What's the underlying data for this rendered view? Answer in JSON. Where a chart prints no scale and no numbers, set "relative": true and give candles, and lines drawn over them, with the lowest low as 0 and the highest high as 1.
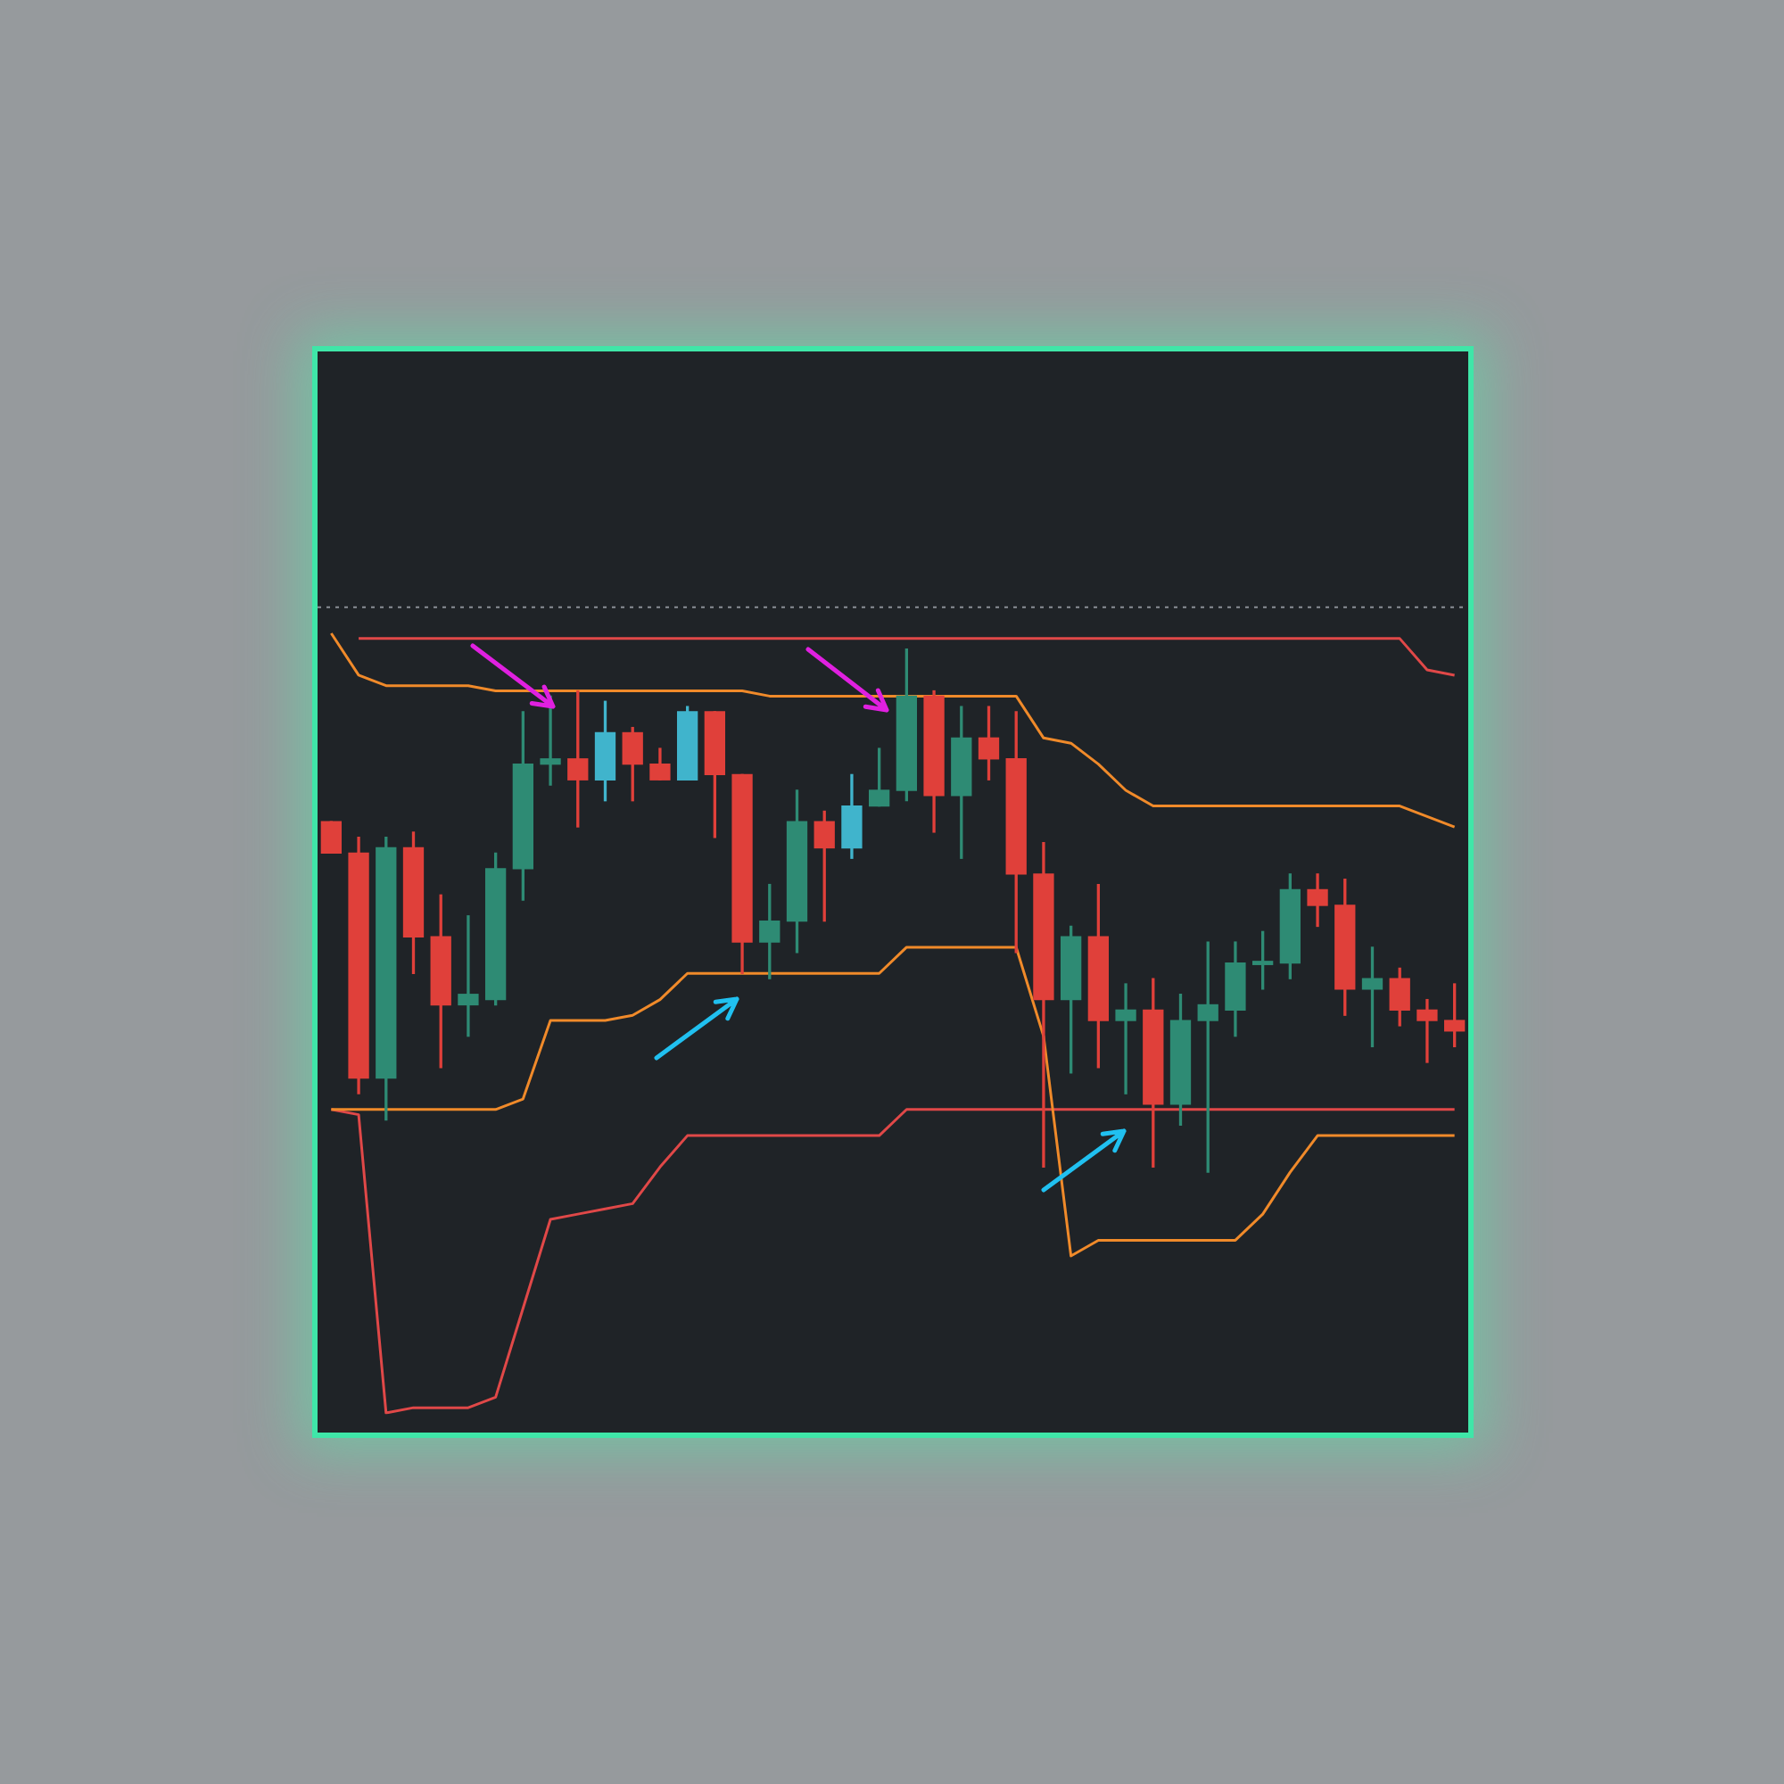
{
  "chart_data": {
    "type": "candlestick",
    "relative": true,
    "categories": [
      null,
      null,
      null,
      null,
      null,
      null,
      null,
      null,
      null,
      null,
      null,
      null,
      null,
      null,
      null,
      null,
      null,
      null,
      null,
      null,
      null,
      null,
      null,
      null,
      null,
      null,
      null,
      null,
      null,
      null,
      null,
      null,
      null,
      null,
      null,
      null,
      null,
      null,
      null,
      null,
      null,
      null
    ],
    "ohlc": [
      [
        0.67,
        0.67,
        0.61,
        0.61
      ],
      [
        0.61,
        0.64,
        0.15,
        0.18
      ],
      [
        0.18,
        0.64,
        0.1,
        0.62
      ],
      [
        0.62,
        0.65,
        0.38,
        0.45
      ],
      [
        0.45,
        0.53,
        0.2,
        0.32
      ],
      [
        0.32,
        0.49,
        0.26,
        0.34
      ],
      [
        0.33,
        0.61,
        0.32,
        0.58
      ],
      [
        0.58,
        0.88,
        0.52,
        0.78
      ],
      [
        0.78,
        0.91,
        0.74,
        0.79
      ],
      [
        0.79,
        0.92,
        0.66,
        0.75
      ],
      [
        0.75,
        0.9,
        0.71,
        0.84
      ],
      [
        0.84,
        0.85,
        0.71,
        0.78
      ],
      [
        0.78,
        0.81,
        0.75,
        0.75
      ],
      [
        0.75,
        0.89,
        0.75,
        0.88
      ],
      [
        0.88,
        0.88,
        0.64,
        0.76
      ],
      [
        0.76,
        0.76,
        0.38,
        0.44
      ],
      [
        0.44,
        0.55,
        0.37,
        0.48
      ],
      [
        0.48,
        0.73,
        0.42,
        0.67
      ],
      [
        0.67,
        0.69,
        0.48,
        0.62
      ],
      [
        0.62,
        0.76,
        0.6,
        0.7
      ],
      [
        0.7,
        0.81,
        0.7,
        0.73
      ],
      [
        0.73,
        1,
        0.71,
        0.91
      ],
      [
        0.91,
        0.92,
        0.65,
        0.72
      ],
      [
        0.72,
        0.89,
        0.6,
        0.83
      ],
      [
        0.83,
        0.89,
        0.75,
        0.79
      ],
      [
        0.79,
        0.88,
        0.42,
        0.57
      ],
      [
        0.57,
        0.63,
        0.01,
        0.33
      ],
      [
        0.33,
        0.47,
        0.19,
        0.45
      ],
      [
        0.45,
        0.55,
        0.2,
        0.29
      ],
      [
        0.29,
        0.36,
        0.15,
        0.31
      ],
      [
        0.31,
        0.37,
        0.01,
        0.13
      ],
      [
        0.13,
        0.34,
        0.09,
        0.29
      ],
      [
        0.29,
        0.44,
        0,
        0.32
      ],
      [
        0.31,
        0.44,
        0.26,
        0.4
      ],
      [
        0.4,
        0.46,
        0.35,
        0.4
      ],
      [
        0.4,
        0.57,
        0.37,
        0.54
      ],
      [
        0.54,
        0.57,
        0.47,
        0.51
      ],
      [
        0.51,
        0.56,
        0.3,
        0.35
      ],
      [
        0.35,
        0.43,
        0.24,
        0.37
      ],
      [
        0.37,
        0.39,
        0.28,
        0.31
      ],
      [
        0.31,
        0.33,
        0.21,
        0.29
      ],
      [
        0.29,
        0.36,
        0.24,
        0.27
      ]
    ],
    "colors": [
      "#e0403a",
      "#e0403a",
      "#2e8b74",
      "#e0403a",
      "#e0403a",
      "#2e8b74",
      "#2e8b74",
      "#2e8b74",
      "#2e8b74",
      "#e0403a",
      "#40b4cc",
      "#e0403a",
      "#e0403a",
      "#40b4cc",
      "#e0403a",
      "#e0403a",
      "#2e8b74",
      "#2e8b74",
      "#e0403a",
      "#40b4cc",
      "#2e8b74",
      "#2e8b74",
      "#e0403a",
      "#2e8b74",
      "#e0403a",
      "#e0403a",
      "#e0403a",
      "#2e8b74",
      "#e0403a",
      "#2e8b74",
      "#e0403a",
      "#2e8b74",
      "#2e8b74",
      "#2e8b74",
      "#2e8b74",
      "#2e8b74",
      "#e0403a",
      "#e0403a",
      "#2e8b74",
      "#e0403a",
      "#e0403a",
      "#e0403a"
    ],
    "series": [
      {
        "type": "line",
        "color": "#e04848",
        "values": [
          null,
          1.02,
          1.02,
          1.02,
          1.02,
          1.02,
          1.02,
          1.02,
          1.02,
          1.02,
          1.02,
          1.02,
          1.02,
          1.02,
          1.02,
          1.02,
          1.02,
          1.02,
          1.02,
          1.02,
          1.02,
          1.02,
          1.02,
          1.02,
          1.02,
          1.02,
          1.02,
          1.02,
          1.02,
          1.02,
          1.02,
          1.02,
          1.02,
          1.02,
          1.02,
          1.02,
          1.02,
          1.02,
          1.02,
          1.02,
          0.96,
          0.95
        ]
      },
      {
        "type": "line",
        "color": "#f08a2a",
        "values": [
          1.03,
          0.95,
          0.93,
          0.93,
          0.93,
          0.93,
          0.92,
          0.92,
          0.92,
          0.92,
          0.92,
          0.92,
          0.92,
          0.92,
          0.92,
          0.92,
          0.91,
          0.91,
          0.91,
          0.91,
          0.91,
          0.91,
          0.91,
          0.91,
          0.91,
          0.91,
          0.83,
          0.82,
          0.78,
          0.73,
          0.7,
          0.7,
          0.7,
          0.7,
          0.7,
          0.7,
          0.7,
          0.7,
          0.7,
          0.7,
          0.68,
          0.66
        ]
      },
      {
        "type": "line",
        "color": "#f08a2a",
        "values": [
          0.12,
          0.12,
          0.12,
          0.12,
          0.12,
          0.12,
          0.12,
          0.14,
          0.29,
          0.29,
          0.29,
          0.3,
          0.33,
          0.38,
          0.38,
          0.38,
          0.38,
          0.38,
          0.38,
          0.38,
          0.38,
          0.43,
          0.43,
          0.43,
          0.43,
          0.43,
          0.26,
          -0.16,
          -0.13,
          -0.13,
          -0.13,
          -0.13,
          -0.13,
          -0.13,
          -0.08,
          0,
          0.07,
          0.07,
          0.07,
          0.07,
          0.07,
          0.07
        ]
      },
      {
        "type": "line",
        "color": "#e04848",
        "values": [
          0.12,
          0.11,
          -0.46,
          -0.45,
          -0.45,
          -0.45,
          -0.43,
          -0.26,
          -0.09,
          -0.08,
          -0.07,
          -0.06,
          0.01,
          0.07,
          0.07,
          0.07,
          0.07,
          0.07,
          0.07,
          0.07,
          0.07,
          0.12,
          0.12,
          0.12,
          0.12,
          0.12,
          0.12,
          0.12,
          0.12,
          0.12,
          0.12,
          0.12,
          0.12,
          0.12,
          0.12,
          0.12,
          0.12,
          0.12,
          0.12,
          0.12,
          0.12,
          0.12
        ]
      }
    ],
    "ref_lines": [
      {
        "axis": "y",
        "value": 1.08,
        "color": "#8a8f96",
        "line_style": "dotted"
      }
    ]
  }
}
